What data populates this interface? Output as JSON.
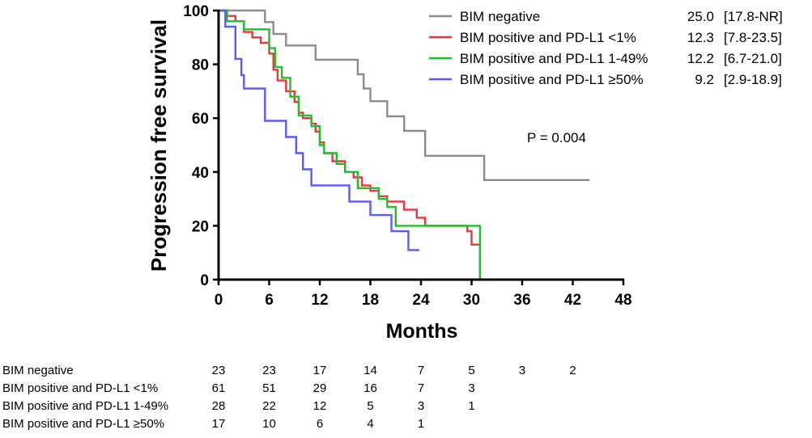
{
  "chart_data": {
    "type": "line",
    "subtype": "kaplan-meier step curve",
    "xlabel": "Months",
    "ylabel": "Progression free survival",
    "xlim": [
      0,
      48
    ],
    "ylim": [
      0,
      100
    ],
    "xticks": [
      "0",
      "6",
      "12",
      "18",
      "24",
      "30",
      "36",
      "42",
      "48"
    ],
    "yticks": [
      "0",
      "20",
      "40",
      "60",
      "80",
      "100"
    ],
    "annotation": "P = 0.004",
    "series": [
      {
        "name": "BIM negative",
        "color": "#8c8c8c",
        "median": "25.0",
        "ci": "[17.8-NR]",
        "points": [
          [
            0,
            100
          ],
          [
            5.5,
            100
          ],
          [
            5.5,
            95.7
          ],
          [
            6.5,
            95.7
          ],
          [
            6.5,
            91.3
          ],
          [
            8,
            91.3
          ],
          [
            8,
            87
          ],
          [
            11.5,
            87
          ],
          [
            11.5,
            81.7
          ],
          [
            16.5,
            81.7
          ],
          [
            16.5,
            76.3
          ],
          [
            17.2,
            76.3
          ],
          [
            17.2,
            71
          ],
          [
            18,
            71
          ],
          [
            18,
            66.3
          ],
          [
            20,
            66.3
          ],
          [
            20,
            60.7
          ],
          [
            22,
            60.7
          ],
          [
            22,
            55.3
          ],
          [
            24.5,
            55.3
          ],
          [
            24.5,
            46
          ],
          [
            31.5,
            46
          ],
          [
            31.5,
            37
          ],
          [
            44,
            37
          ]
        ]
      },
      {
        "name": "BIM positive and PD-L1 <1%",
        "color": "#e8383d",
        "median": "12.3",
        "ci": "[7.8-23.5]",
        "points": [
          [
            0,
            100
          ],
          [
            1,
            100
          ],
          [
            1,
            98
          ],
          [
            2,
            98
          ],
          [
            2,
            96
          ],
          [
            3,
            96
          ],
          [
            3,
            92
          ],
          [
            4,
            92
          ],
          [
            4,
            90
          ],
          [
            5,
            90
          ],
          [
            5,
            88
          ],
          [
            6,
            88
          ],
          [
            6,
            84
          ],
          [
            6.5,
            84
          ],
          [
            6.5,
            78
          ],
          [
            7,
            78
          ],
          [
            7,
            74
          ],
          [
            8,
            74
          ],
          [
            8,
            70
          ],
          [
            9,
            70
          ],
          [
            9,
            66
          ],
          [
            9.5,
            66
          ],
          [
            9.5,
            62
          ],
          [
            10,
            62
          ],
          [
            10,
            60
          ],
          [
            11,
            60
          ],
          [
            11,
            58
          ],
          [
            11.5,
            58
          ],
          [
            11.5,
            55
          ],
          [
            12,
            55
          ],
          [
            12,
            51
          ],
          [
            12.5,
            51
          ],
          [
            12.5,
            47
          ],
          [
            13.5,
            47
          ],
          [
            13.5,
            44
          ],
          [
            15,
            44
          ],
          [
            15,
            40
          ],
          [
            16,
            40
          ],
          [
            16,
            38
          ],
          [
            17,
            38
          ],
          [
            17,
            35
          ],
          [
            18,
            35
          ],
          [
            18,
            33
          ],
          [
            19,
            33
          ],
          [
            19,
            31
          ],
          [
            20,
            31
          ],
          [
            20,
            29
          ],
          [
            22,
            29
          ],
          [
            22,
            26
          ],
          [
            23.5,
            26
          ],
          [
            23.5,
            23
          ],
          [
            24.5,
            23
          ],
          [
            24.5,
            20
          ],
          [
            29.5,
            20
          ],
          [
            29.5,
            18
          ],
          [
            30,
            18
          ],
          [
            30,
            13
          ],
          [
            31,
            13
          ],
          [
            31,
            0
          ]
        ]
      },
      {
        "name": "BIM positive and PD-L1 1-49%",
        "color": "#1fc12a",
        "median": "12.2",
        "ci": "[6.7-21.0]",
        "points": [
          [
            0,
            100
          ],
          [
            1,
            100
          ],
          [
            1,
            96
          ],
          [
            3,
            96
          ],
          [
            3,
            93
          ],
          [
            6,
            93
          ],
          [
            6,
            86
          ],
          [
            6.7,
            86
          ],
          [
            6.7,
            79
          ],
          [
            7.5,
            79
          ],
          [
            7.5,
            75
          ],
          [
            8.5,
            75
          ],
          [
            8.5,
            68
          ],
          [
            9.5,
            68
          ],
          [
            9.5,
            61
          ],
          [
            11,
            61
          ],
          [
            11,
            57
          ],
          [
            12,
            57
          ],
          [
            12,
            50
          ],
          [
            12.5,
            50
          ],
          [
            12.5,
            47
          ],
          [
            14,
            47
          ],
          [
            14,
            43
          ],
          [
            15,
            43
          ],
          [
            15,
            40
          ],
          [
            16.5,
            40
          ],
          [
            16.5,
            34
          ],
          [
            19,
            34
          ],
          [
            19,
            30
          ],
          [
            20,
            30
          ],
          [
            20,
            27
          ],
          [
            21,
            27
          ],
          [
            21,
            20
          ],
          [
            31,
            20
          ],
          [
            31,
            0
          ]
        ]
      },
      {
        "name": "BIM positive and PD-L1 ≥50%",
        "color": "#5b5bf2",
        "median": "9.2",
        "ci": "[2.9-18.9]",
        "points": [
          [
            0,
            100
          ],
          [
            0.8,
            100
          ],
          [
            0.8,
            94
          ],
          [
            2,
            94
          ],
          [
            2,
            82
          ],
          [
            2.7,
            82
          ],
          [
            2.7,
            76
          ],
          [
            3,
            76
          ],
          [
            3,
            71
          ],
          [
            5.5,
            71
          ],
          [
            5.5,
            59
          ],
          [
            8,
            59
          ],
          [
            8,
            53
          ],
          [
            9.2,
            53
          ],
          [
            9.2,
            47
          ],
          [
            10,
            47
          ],
          [
            10,
            41
          ],
          [
            11,
            41
          ],
          [
            11,
            35
          ],
          [
            15.5,
            35
          ],
          [
            15.5,
            29
          ],
          [
            18,
            29
          ],
          [
            18,
            24
          ],
          [
            20.5,
            24
          ],
          [
            20.5,
            18
          ],
          [
            22.5,
            18
          ],
          [
            22.5,
            11
          ],
          [
            23.8,
            11
          ]
        ]
      }
    ],
    "risk_table": {
      "times": [
        "0",
        "6",
        "12",
        "18",
        "24",
        "30",
        "36",
        "42"
      ],
      "rows": [
        {
          "label": "BIM negative",
          "values": [
            "23",
            "23",
            "17",
            "14",
            "7",
            "5",
            "3",
            "2"
          ]
        },
        {
          "label": "BIM positive and PD-L1 <1%",
          "values": [
            "61",
            "51",
            "29",
            "16",
            "7",
            "3"
          ]
        },
        {
          "label": "BIM positive and PD-L1 1-49%",
          "values": [
            "28",
            "22",
            "12",
            "5",
            "3",
            "1"
          ]
        },
        {
          "label": "BIM positive and PD-L1 ≥50%",
          "values": [
            "17",
            "10",
            "6",
            "4",
            "1"
          ]
        }
      ]
    }
  }
}
